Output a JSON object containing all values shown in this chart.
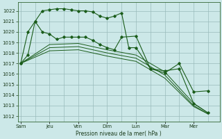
{
  "title": "",
  "xlabel": "Pression niveau de la mer( hPa )",
  "background_color": "#cce8e8",
  "plot_background": "#cce8e8",
  "grid_color": "#99bbbb",
  "line_color": "#1a5c1a",
  "ylim": [
    1011.5,
    1022.8
  ],
  "yticks": [
    1012,
    1013,
    1014,
    1015,
    1016,
    1017,
    1018,
    1019,
    1020,
    1021,
    1022
  ],
  "day_labels": [
    "Sam",
    "Jeu",
    "Ven",
    "Dim",
    "Lun",
    "Mar",
    "Mer"
  ],
  "day_positions": [
    0,
    2,
    4,
    6,
    8,
    10,
    12
  ],
  "xlim": [
    -0.2,
    13.8
  ],
  "series": [
    {
      "x": [
        0,
        0.5,
        1,
        1.5,
        2,
        2.5,
        3,
        3.5,
        4,
        4.5,
        5,
        5.5,
        6,
        6.5,
        7,
        7.5,
        8,
        9,
        10,
        11,
        12,
        13
      ],
      "y": [
        1017.0,
        1017.8,
        1021.0,
        1022.0,
        1022.1,
        1022.2,
        1022.2,
        1022.1,
        1022.0,
        1022.0,
        1021.9,
        1021.5,
        1021.3,
        1021.5,
        1021.8,
        1018.5,
        1018.5,
        1016.5,
        1016.3,
        1016.5,
        1013.2,
        1012.3
      ],
      "markers": true
    },
    {
      "x": [
        0,
        0.5,
        1,
        1.5,
        2,
        2.5,
        3,
        3.5,
        4,
        4.5,
        5,
        5.5,
        6,
        6.5,
        7,
        8,
        9,
        10,
        11,
        12,
        13
      ],
      "y": [
        1017.0,
        1020.0,
        1021.0,
        1020.0,
        1019.8,
        1019.3,
        1019.5,
        1019.5,
        1019.5,
        1019.5,
        1019.2,
        1018.8,
        1018.5,
        1018.3,
        1019.5,
        1019.6,
        1016.5,
        1016.1,
        1017.0,
        1014.3,
        1014.4
      ],
      "markers": true
    },
    {
      "x": [
        0,
        2,
        4,
        6,
        8,
        10,
        12,
        13
      ],
      "y": [
        1017.0,
        1018.8,
        1018.9,
        1018.3,
        1017.8,
        1016.2,
        1013.2,
        1012.3
      ],
      "markers": false
    },
    {
      "x": [
        0,
        2,
        4,
        6,
        8,
        10,
        12,
        13
      ],
      "y": [
        1017.0,
        1018.5,
        1018.6,
        1018.0,
        1017.5,
        1015.9,
        1013.0,
        1012.2
      ],
      "markers": false
    },
    {
      "x": [
        0,
        2,
        4,
        6,
        8,
        10,
        12,
        13
      ],
      "y": [
        1017.0,
        1018.2,
        1018.3,
        1017.7,
        1017.2,
        1015.6,
        1012.9,
        1012.2
      ],
      "markers": false
    }
  ]
}
